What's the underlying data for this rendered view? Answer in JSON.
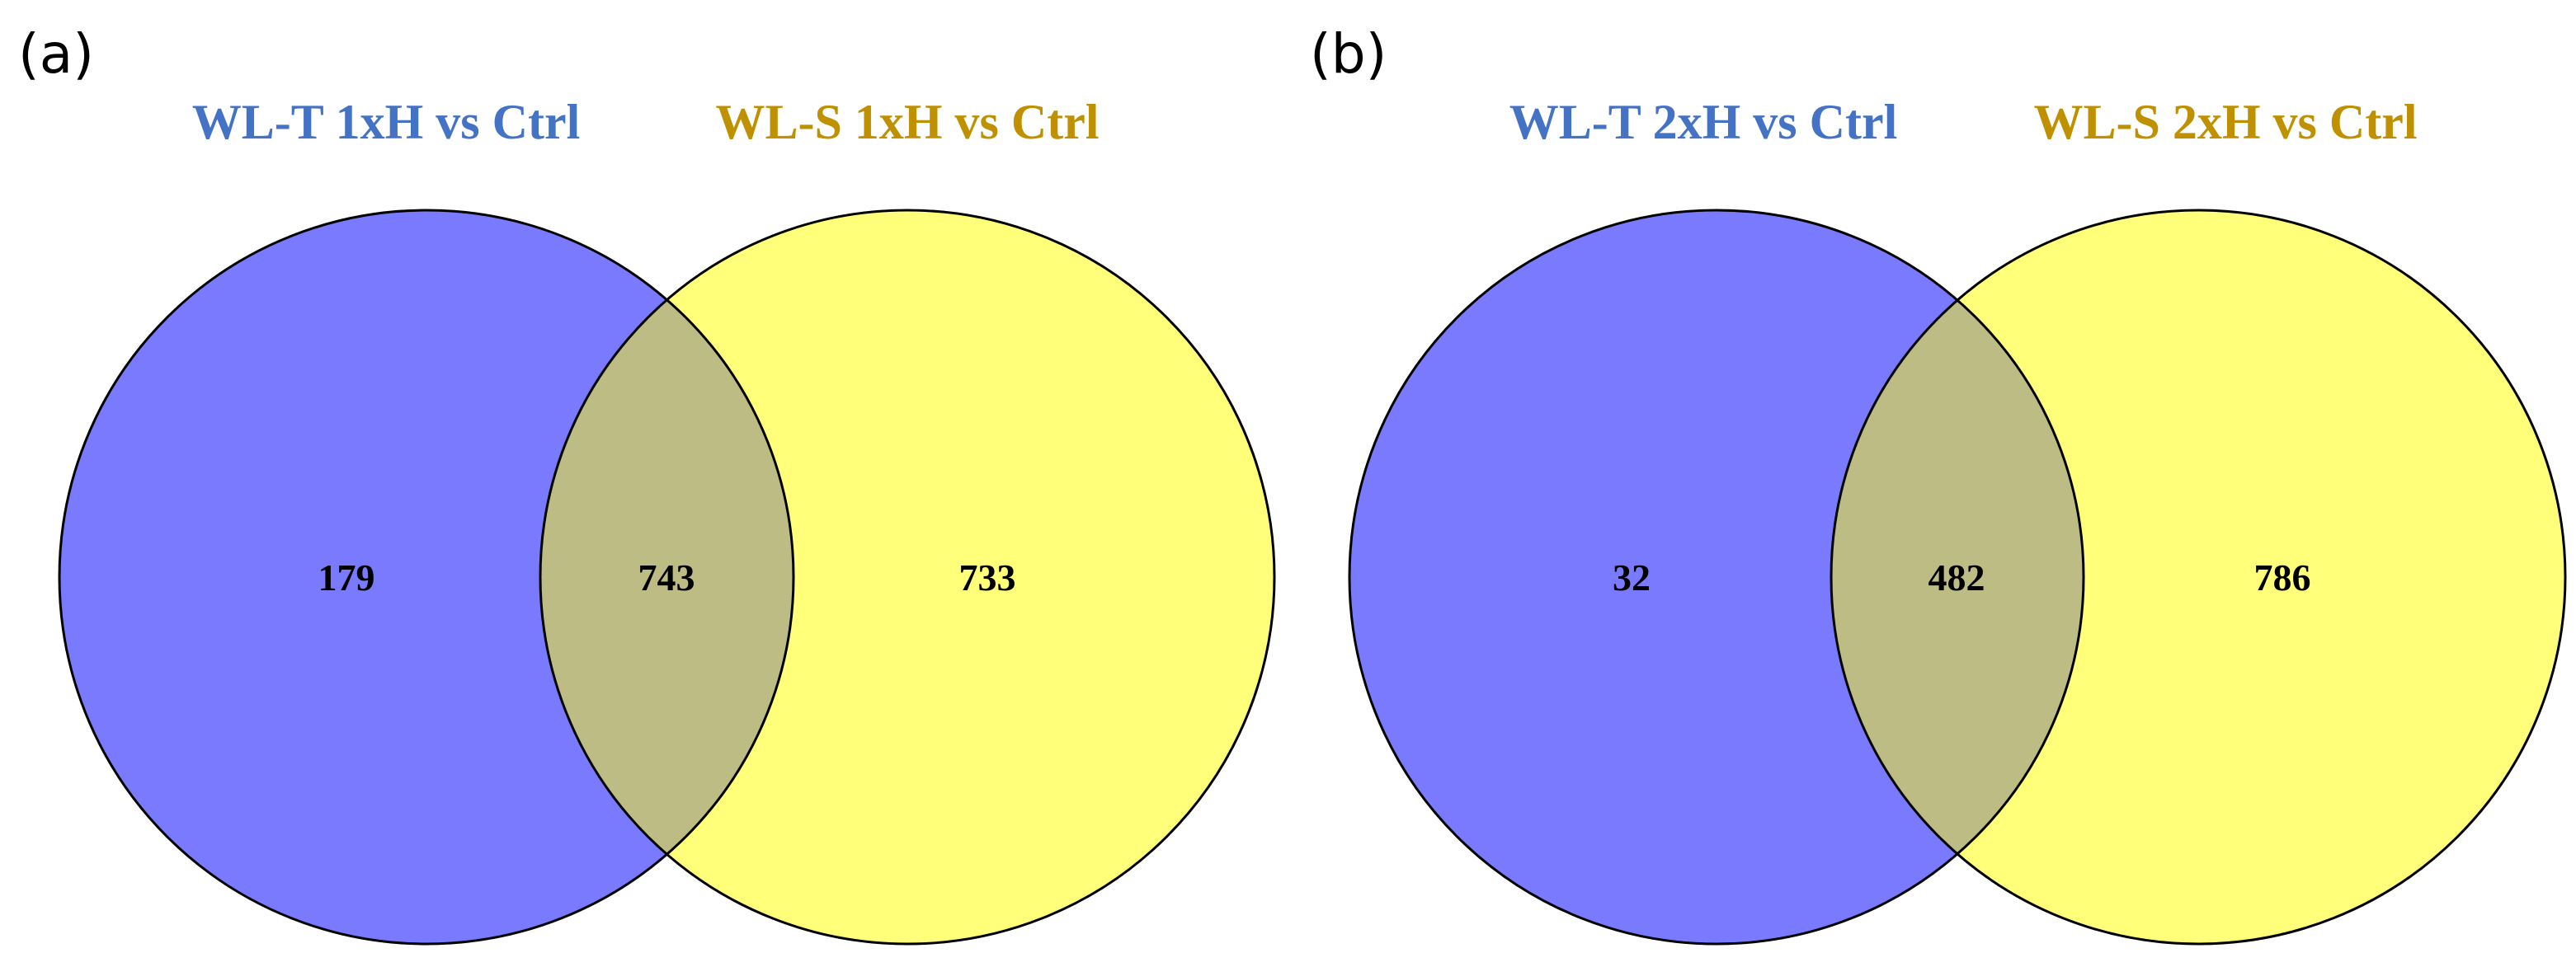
{
  "colors": {
    "set_a_fill": "#7a7aff",
    "set_b_fill": "#ffff7a",
    "overlap_fill": "#bdbc85",
    "set_a_label": "#4472c4",
    "set_b_label": "#bf9000",
    "outline": "#000000"
  },
  "panels": [
    {
      "label": "(a)",
      "set_a_name": "WL-T 1xH vs Ctrl",
      "set_b_name": "WL-S 1xH vs Ctrl",
      "only_a": "179",
      "both": "743",
      "only_b": "733"
    },
    {
      "label": "(b)",
      "set_a_name": "WL-T 2xH vs Ctrl",
      "set_b_name": "WL-S 2xH vs Ctrl",
      "only_a": "32",
      "both": "482",
      "only_b": "786"
    }
  ]
}
